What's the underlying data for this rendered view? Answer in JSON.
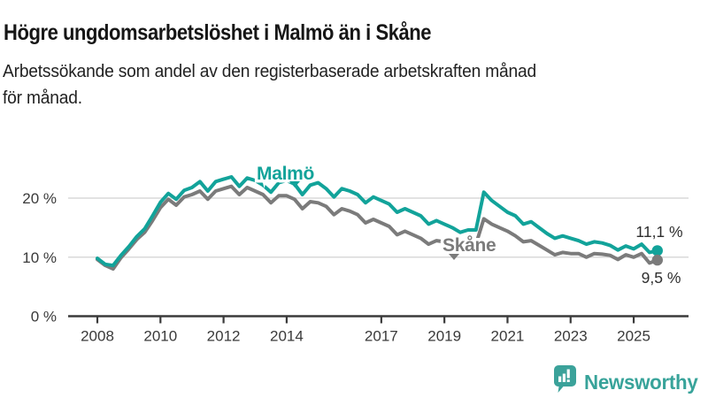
{
  "header": {
    "title": "Högre ungdomsarbetslöshet i Malmö än i Skåne",
    "subtitle_line1": "Arbetssökande som andel av den registerbaserade arbetskraften månad",
    "subtitle_line2": "för månad."
  },
  "footer": {
    "brand": "Newsworthy",
    "brand_color": "#38a39a",
    "logo_icon": "speech-bubble-with-bar-chart-and-exclamation"
  },
  "colors": {
    "malmo": "#12a39a",
    "skane": "#7b7b7b",
    "gridline": "#d9d9d9",
    "axis": "#3a3a3a",
    "tick_label": "#3a3a3a",
    "value_label": "#2e2e2e"
  },
  "chart_data": {
    "type": "line",
    "title": "Högre ungdomsarbetslöshet i Malmö än i Skåne",
    "subtitle": "Arbetssökande som andel av den registerbaserade arbetskraften månad för månad.",
    "x_unit": "decimal_year",
    "xlim": [
      2008,
      2026.2
    ],
    "ylim": [
      0,
      26
    ],
    "grid": "horizontal-only",
    "legend_position": "inline-labels-on-lines",
    "yticks": [
      {
        "value": 0,
        "label": "0 %"
      },
      {
        "value": 10,
        "label": "10 %"
      },
      {
        "value": 20,
        "label": "20 %"
      }
    ],
    "xticks": [
      {
        "value": 2008,
        "label": "2008"
      },
      {
        "value": 2010,
        "label": "2010"
      },
      {
        "value": 2012,
        "label": "2012"
      },
      {
        "value": 2014,
        "label": "2014"
      },
      {
        "value": 2017,
        "label": "2017"
      },
      {
        "value": 2019,
        "label": "2019"
      },
      {
        "value": 2021,
        "label": "2021"
      },
      {
        "value": 2023,
        "label": "2023"
      },
      {
        "value": 2025,
        "label": "2025"
      }
    ],
    "x": [
      2008,
      2008.25,
      2008.5,
      2008.75,
      2009,
      2009.25,
      2009.5,
      2009.75,
      2010,
      2010.25,
      2010.5,
      2010.75,
      2011,
      2011.25,
      2011.5,
      2011.75,
      2012,
      2012.25,
      2012.5,
      2012.75,
      2013,
      2013.25,
      2013.5,
      2013.75,
      2014,
      2014.25,
      2014.5,
      2014.75,
      2015,
      2015.25,
      2015.5,
      2015.75,
      2016,
      2016.25,
      2016.5,
      2016.75,
      2017,
      2017.25,
      2017.5,
      2017.75,
      2018,
      2018.25,
      2018.5,
      2018.75,
      2019,
      2019.25,
      2019.5,
      2019.75,
      2020,
      2020.25,
      2020.5,
      2020.75,
      2021,
      2021.25,
      2021.5,
      2021.75,
      2022,
      2022.25,
      2022.5,
      2022.75,
      2023,
      2023.25,
      2023.5,
      2023.75,
      2024,
      2024.25,
      2024.5,
      2024.75,
      2025,
      2025.25,
      2025.5,
      2025.75
    ],
    "series": [
      {
        "name": "Malmö",
        "color": "#12a39a",
        "end_label": "11,1 %",
        "end_value": 11.1,
        "values": [
          9.8,
          8.8,
          8.6,
          10.3,
          11.8,
          13.5,
          14.8,
          17.0,
          19.3,
          20.8,
          19.8,
          21.3,
          21.8,
          22.8,
          21.2,
          22.8,
          23.2,
          23.6,
          22.0,
          23.4,
          23.0,
          22.2,
          21.0,
          22.6,
          23.0,
          22.4,
          20.6,
          22.2,
          22.6,
          21.6,
          20.2,
          21.6,
          21.2,
          20.6,
          19.2,
          20.2,
          19.6,
          19.0,
          17.6,
          18.2,
          17.6,
          17.0,
          15.6,
          16.2,
          15.6,
          15.0,
          14.2,
          14.6,
          14.6,
          21.0,
          19.6,
          18.6,
          17.6,
          17.0,
          15.6,
          16.0,
          15.0,
          14.0,
          13.2,
          13.6,
          13.2,
          12.8,
          12.2,
          12.6,
          12.4,
          12.0,
          11.2,
          11.9,
          11.4,
          12.2,
          10.8,
          11.1
        ]
      },
      {
        "name": "Skåne",
        "color": "#7b7b7b",
        "end_label": "9,5 %",
        "end_value": 9.5,
        "values": [
          9.6,
          8.6,
          8.0,
          9.9,
          11.4,
          13.0,
          14.2,
          16.2,
          18.4,
          19.8,
          18.8,
          20.2,
          20.6,
          21.2,
          19.8,
          21.2,
          21.6,
          22.0,
          20.6,
          21.8,
          21.2,
          20.6,
          19.2,
          20.4,
          20.4,
          19.8,
          18.2,
          19.4,
          19.2,
          18.6,
          17.2,
          18.2,
          17.8,
          17.2,
          15.8,
          16.4,
          15.8,
          15.2,
          13.8,
          14.4,
          13.8,
          13.2,
          12.2,
          12.8,
          12.6,
          12.2,
          11.6,
          12.0,
          12.2,
          16.5,
          15.6,
          15.0,
          14.4,
          13.6,
          12.6,
          12.8,
          12.0,
          11.2,
          10.4,
          10.8,
          10.6,
          10.6,
          10.0,
          10.6,
          10.5,
          10.3,
          9.6,
          10.4,
          10.0,
          10.6,
          9.0,
          9.5
        ]
      }
    ]
  }
}
